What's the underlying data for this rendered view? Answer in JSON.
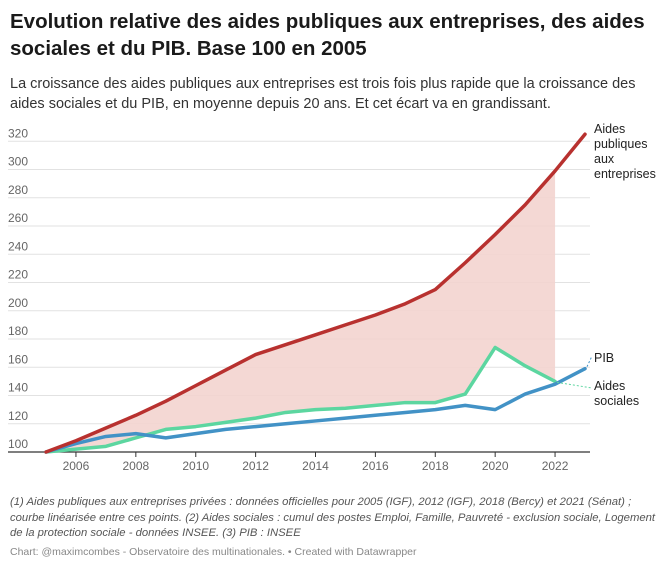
{
  "title": "Evolution relative des aides publiques aux entreprises, des aides sociales et du PIB. Base 100 en 2005",
  "subtitle": "La croissance des aides publiques aux entreprises est trois fois plus rapide que la croissance des aides sociales et du PIB, en moyenne depuis 20 ans. Et cet écart va en grandissant.",
  "notes": "(1) Aides publiques aux entreprises privées : données officielles pour 2005 (IGF), 2012 (IGF), 2018 (Bercy) et 2021 (Sénat) ; courbe linéarisée entre ces points. (2) Aides sociales : cumul des postes Emploi, Famille, Pauvreté - exclusion sociale, Logement de la protection sociale - données INSEE. (3) PIB : INSEE",
  "credit": "Chart: @maximcombes - Observatoire des multinationales. • Created with Datawrapper",
  "chart_data": {
    "type": "line",
    "x": [
      2005,
      2006,
      2007,
      2008,
      2009,
      2010,
      2011,
      2012,
      2013,
      2014,
      2015,
      2016,
      2017,
      2018,
      2019,
      2020,
      2021,
      2022,
      2023
    ],
    "xticks": [
      2006,
      2008,
      2010,
      2012,
      2014,
      2016,
      2018,
      2020,
      2022
    ],
    "xlim": [
      2005,
      2023
    ],
    "yticks": [
      100,
      120,
      140,
      160,
      180,
      200,
      220,
      240,
      260,
      280,
      300,
      320
    ],
    "ylim": [
      100,
      328
    ],
    "grid": true,
    "shaded_area": {
      "between": [
        "Aides publiques aux entreprises",
        "Aides sociales"
      ],
      "color": "#f3d4cf"
    },
    "series": [
      {
        "name": "Aides publiques aux entreprises",
        "label_lines": [
          "Aides",
          "publiques",
          "aux",
          "entreprises"
        ],
        "color": "#b8312f",
        "x": [
          2005,
          2006,
          2007,
          2008,
          2009,
          2010,
          2011,
          2012,
          2013,
          2014,
          2015,
          2016,
          2017,
          2018,
          2019,
          2020,
          2021,
          2022,
          2023
        ],
        "values": [
          100,
          108,
          117,
          126,
          136,
          147,
          158,
          169,
          176,
          183,
          190,
          197,
          205,
          215,
          234,
          254,
          275,
          299,
          325
        ]
      },
      {
        "name": "Aides sociales",
        "label_lines": [
          "Aides",
          "sociales"
        ],
        "color": "#5cd6a0",
        "x": [
          2005,
          2006,
          2007,
          2008,
          2009,
          2010,
          2011,
          2012,
          2013,
          2014,
          2015,
          2016,
          2017,
          2018,
          2019,
          2020,
          2021,
          2022
        ],
        "values": [
          100,
          102,
          104,
          110,
          116,
          118,
          121,
          124,
          128,
          130,
          131,
          133,
          135,
          135,
          141,
          174,
          161,
          150
        ]
      },
      {
        "name": "PIB",
        "label_lines": [
          "PIB"
        ],
        "color": "#4292c6",
        "x": [
          2005,
          2006,
          2007,
          2008,
          2009,
          2010,
          2011,
          2012,
          2013,
          2014,
          2015,
          2016,
          2017,
          2018,
          2019,
          2020,
          2021,
          2022,
          2023
        ],
        "values": [
          100,
          106,
          111,
          113,
          110,
          113,
          116,
          118,
          120,
          122,
          124,
          126,
          128,
          130,
          133,
          130,
          141,
          148,
          159
        ]
      }
    ]
  }
}
